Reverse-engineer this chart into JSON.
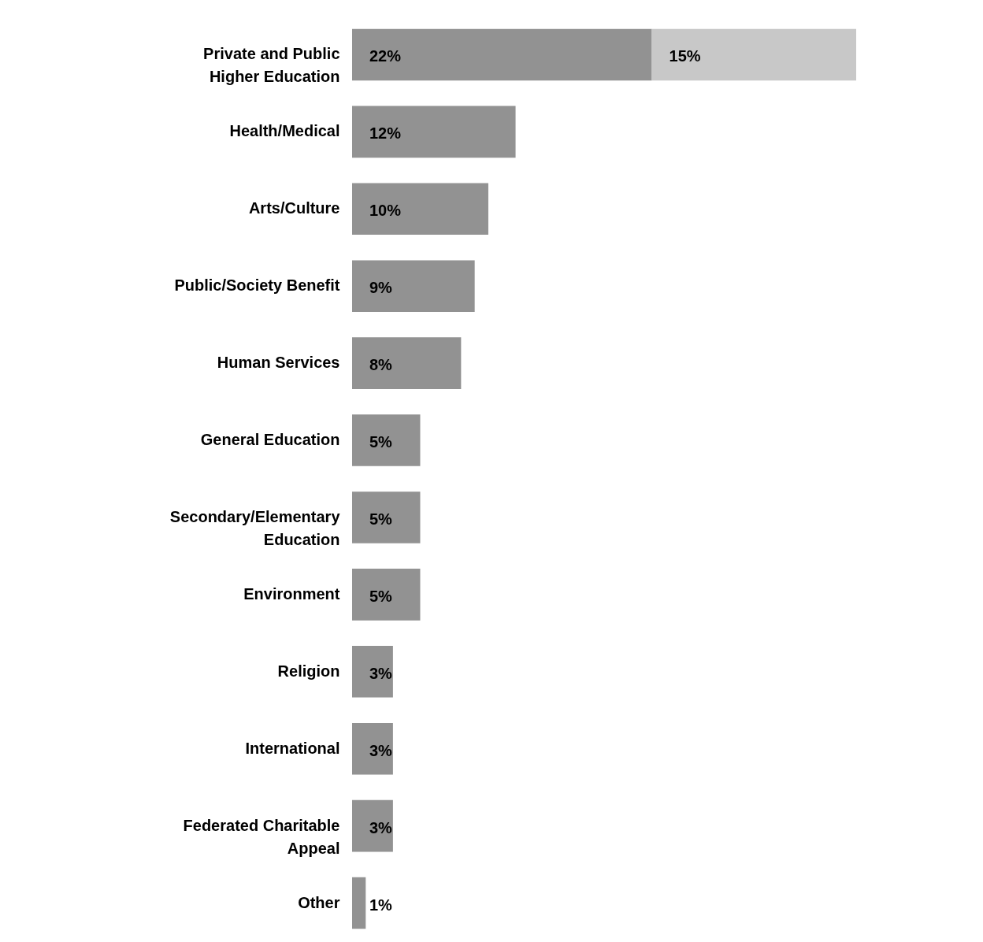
{
  "chart_data": {
    "type": "bar",
    "orientation": "horizontal",
    "stacked": true,
    "tick_labels": "y",
    "categories": [
      "Private and Public\nHigher Education",
      "Health/Medical",
      "Arts/Culture",
      "Public/Society Benefit",
      "Human Services",
      "General Education",
      "Secondary/Elementary\nEducation",
      "Environment",
      "Religion",
      "International",
      "Federated Charitable\nAppeal",
      "Other"
    ],
    "series": [
      {
        "color": "#929292",
        "values": [
          22,
          12,
          10,
          9,
          8,
          5,
          5,
          5,
          3,
          3,
          3,
          1
        ],
        "value_labels": [
          "22%",
          "12%",
          "10%",
          "9%",
          "8%",
          "5%",
          "5%",
          "5%",
          "3%",
          "3%",
          "3%",
          "1%"
        ]
      },
      {
        "color": "#c8c8c8",
        "values": [
          15,
          null,
          null,
          null,
          null,
          null,
          null,
          null,
          null,
          null,
          null,
          null
        ],
        "value_labels": [
          "15%",
          null,
          null,
          null,
          null,
          null,
          null,
          null,
          null,
          null,
          null,
          null
        ]
      }
    ]
  }
}
